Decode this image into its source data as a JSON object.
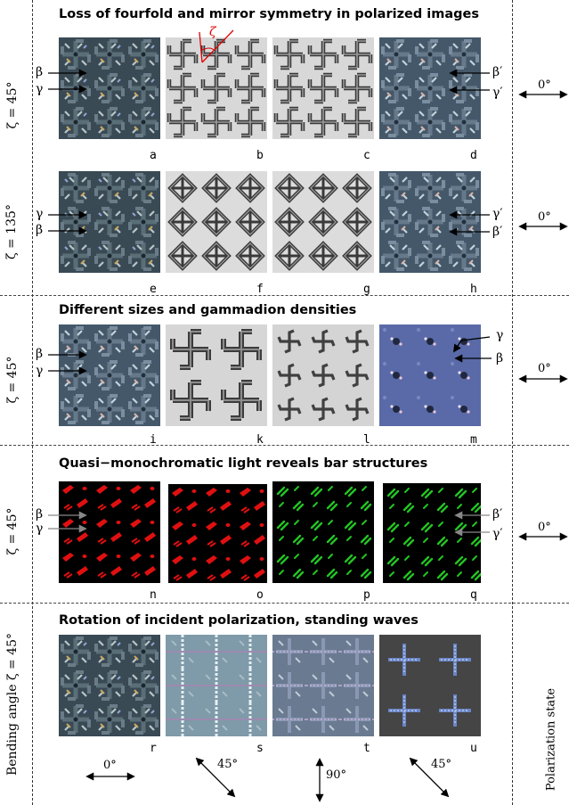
{
  "titles": {
    "s1": "Loss of fourfold and mirror symmetry in polarized images",
    "s2": "Different sizes and gammadion densities",
    "s3": "Quasi−monochromatic light reveals bar structures",
    "s4": "Rotation of incident polarization, standing waves"
  },
  "side": {
    "row1": "ζ = 45°",
    "row2": "ζ = 135°",
    "row3": "ζ = 45°",
    "row4": "ζ = 45°",
    "row5": "Bending angle ζ = 45°",
    "right": "Polarization state"
  },
  "pol": {
    "r1": "0°",
    "r2": "0°",
    "r3": "0°",
    "r4": "0°"
  },
  "bottom_angles": [
    "0°",
    "45°",
    "90°",
    "45°"
  ],
  "zeta": "ζ",
  "greek": {
    "beta": "β",
    "gamma": "γ",
    "beta_p": "β′",
    "gamma_p": "γ′"
  },
  "panels": [
    "a",
    "b",
    "c",
    "d",
    "e",
    "f",
    "g",
    "h",
    "i",
    "k",
    "l",
    "m",
    "n",
    "o",
    "p",
    "q",
    "r",
    "s",
    "t",
    "u"
  ],
  "colors": {
    "arrow_red": "#e00000",
    "mono_red": "#e01010",
    "mono_green": "#22c522"
  }
}
